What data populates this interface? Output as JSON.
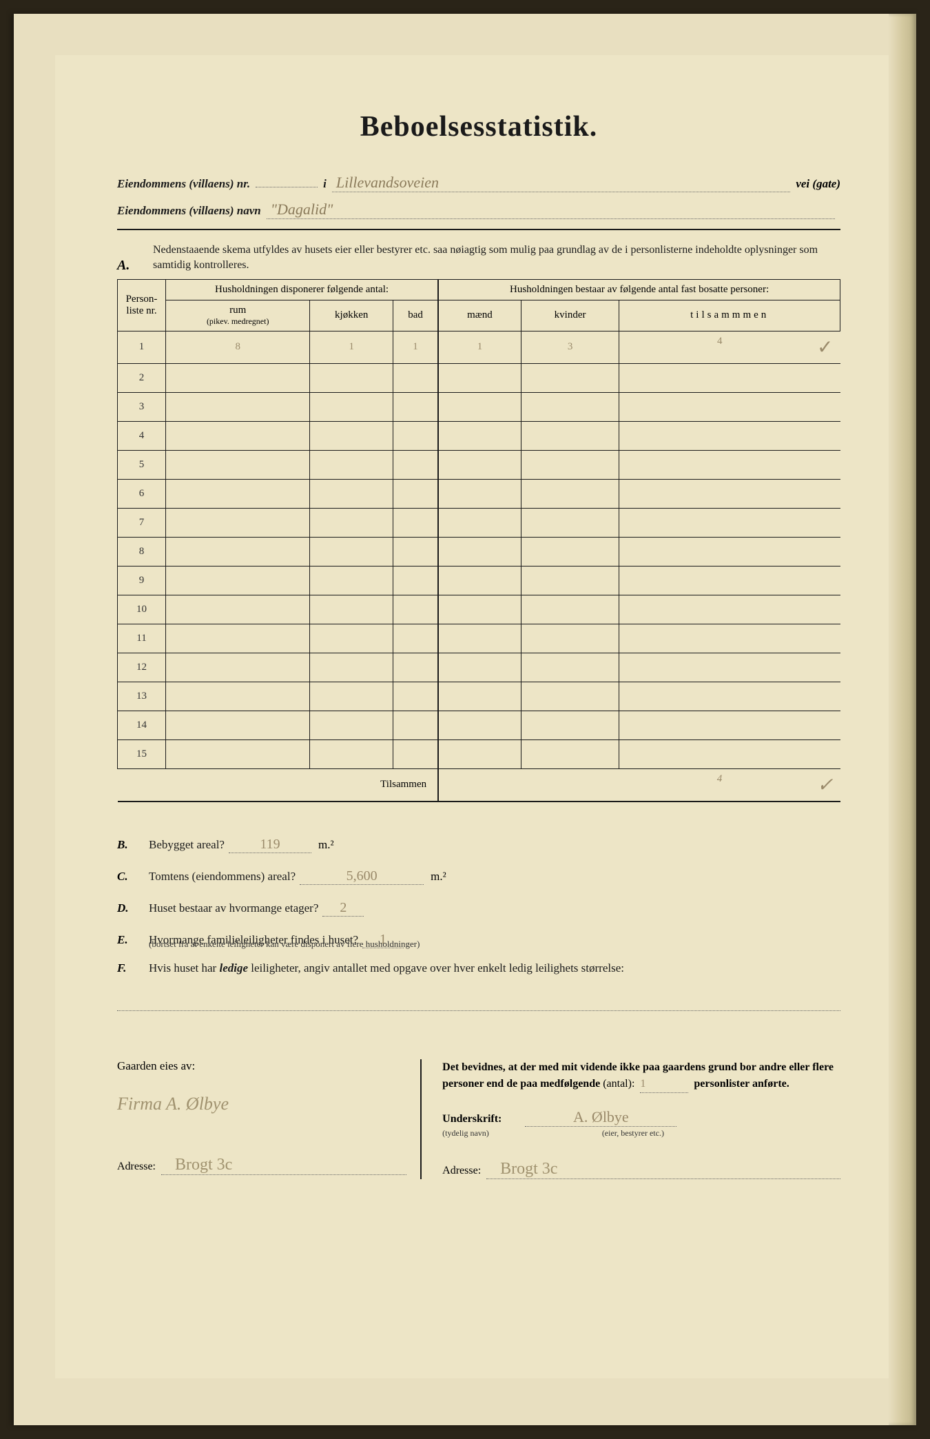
{
  "title": "Beboelsesstatistik.",
  "header": {
    "line1_label": "Eiendommens (villaens) nr.",
    "line1_mid": "i",
    "line1_value": "Lillevandsoveien",
    "line1_right": "vei (gate)",
    "line2_label": "Eiendommens (villaens) navn",
    "line2_value": "\"Dagalid\""
  },
  "section_a": {
    "letter": "A.",
    "instruction": "Nedenstaaende skema utfyldes av husets eier eller bestyrer etc. saa nøiagtig som mulig paa grundlag av de i personlisterne indeholdte oplysninger som samtidig kontrolleres."
  },
  "table": {
    "col_personliste": "Person-liste nr.",
    "group_left": "Husholdningen disponerer følgende antal:",
    "group_right": "Husholdningen bestaar av følgende antal fast bosatte personer:",
    "col_rum": "rum",
    "col_rum_sub": "(pikev. medregnet)",
    "col_kjokken": "kjøkken",
    "col_bad": "bad",
    "col_maend": "mænd",
    "col_kvinder": "kvinder",
    "col_tilsammen": "tilsammmen",
    "rows": [
      {
        "n": "1",
        "rum": "8",
        "kj": "1",
        "bad": "1",
        "m": "1",
        "k": "3",
        "t": "4",
        "chk": "✓"
      },
      {
        "n": "2",
        "rum": "",
        "kj": "",
        "bad": "",
        "m": "",
        "k": "",
        "t": "",
        "chk": ""
      },
      {
        "n": "3",
        "rum": "",
        "kj": "",
        "bad": "",
        "m": "",
        "k": "",
        "t": "",
        "chk": ""
      },
      {
        "n": "4",
        "rum": "",
        "kj": "",
        "bad": "",
        "m": "",
        "k": "",
        "t": "",
        "chk": ""
      },
      {
        "n": "5",
        "rum": "",
        "kj": "",
        "bad": "",
        "m": "",
        "k": "",
        "t": "",
        "chk": ""
      },
      {
        "n": "6",
        "rum": "",
        "kj": "",
        "bad": "",
        "m": "",
        "k": "",
        "t": "",
        "chk": ""
      },
      {
        "n": "7",
        "rum": "",
        "kj": "",
        "bad": "",
        "m": "",
        "k": "",
        "t": "",
        "chk": ""
      },
      {
        "n": "8",
        "rum": "",
        "kj": "",
        "bad": "",
        "m": "",
        "k": "",
        "t": "",
        "chk": ""
      },
      {
        "n": "9",
        "rum": "",
        "kj": "",
        "bad": "",
        "m": "",
        "k": "",
        "t": "",
        "chk": ""
      },
      {
        "n": "10",
        "rum": "",
        "kj": "",
        "bad": "",
        "m": "",
        "k": "",
        "t": "",
        "chk": ""
      },
      {
        "n": "11",
        "rum": "",
        "kj": "",
        "bad": "",
        "m": "",
        "k": "",
        "t": "",
        "chk": ""
      },
      {
        "n": "12",
        "rum": "",
        "kj": "",
        "bad": "",
        "m": "",
        "k": "",
        "t": "",
        "chk": ""
      },
      {
        "n": "13",
        "rum": "",
        "kj": "",
        "bad": "",
        "m": "",
        "k": "",
        "t": "",
        "chk": ""
      },
      {
        "n": "14",
        "rum": "",
        "kj": "",
        "bad": "",
        "m": "",
        "k": "",
        "t": "",
        "chk": ""
      },
      {
        "n": "15",
        "rum": "",
        "kj": "",
        "bad": "",
        "m": "",
        "k": "",
        "t": "",
        "chk": ""
      }
    ],
    "total_label": "Tilsammen",
    "total_t": "4",
    "total_chk": "✓"
  },
  "questions": {
    "b": {
      "letter": "B.",
      "text": "Bebygget areal?",
      "value": "119",
      "unit": "m.²"
    },
    "c": {
      "letter": "C.",
      "text": "Tomtens (eiendommens) areal?",
      "value": "5,600",
      "unit": "m.²"
    },
    "d": {
      "letter": "D.",
      "text": "Huset bestaar av hvormange etager?",
      "value": "2"
    },
    "e": {
      "letter": "E.",
      "text": "Hvormange familieleiligheter findes i huset?",
      "sub": "(bortset fra at enkelte leiligheter kan være disponert av flere husholdninger)",
      "value": "1"
    },
    "f": {
      "letter": "F.",
      "text": "Hvis huset har ledige leiligheter, angiv antallet med opgave over hver enkelt ledig leilighets størrelse:",
      "value": ""
    }
  },
  "footer": {
    "left_title": "Gaarden eies av:",
    "owner": "Firma A. Ølbye",
    "left_addr_label": "Adresse:",
    "left_addr": "Brogt 3c",
    "right_text_1": "Det bevidnes, at der med mit vidende ikke paa gaardens grund bor andre eller flere personer end de paa medfølgende",
    "antal_label": "(antal):",
    "antal_value": "1",
    "right_text_2": "personlister anførte.",
    "sig_label": "Underskrift:",
    "sig_sub": "(tydelig navn)",
    "sig_value": "A. Ølbye",
    "sig_role": "(eier, bestyrer etc.)",
    "right_addr_label": "Adresse:",
    "right_addr": "Brogt 3c"
  },
  "colors": {
    "paper": "#ede5c6",
    "ink": "#1a1a1a",
    "pencil": "#9a8a6a"
  }
}
